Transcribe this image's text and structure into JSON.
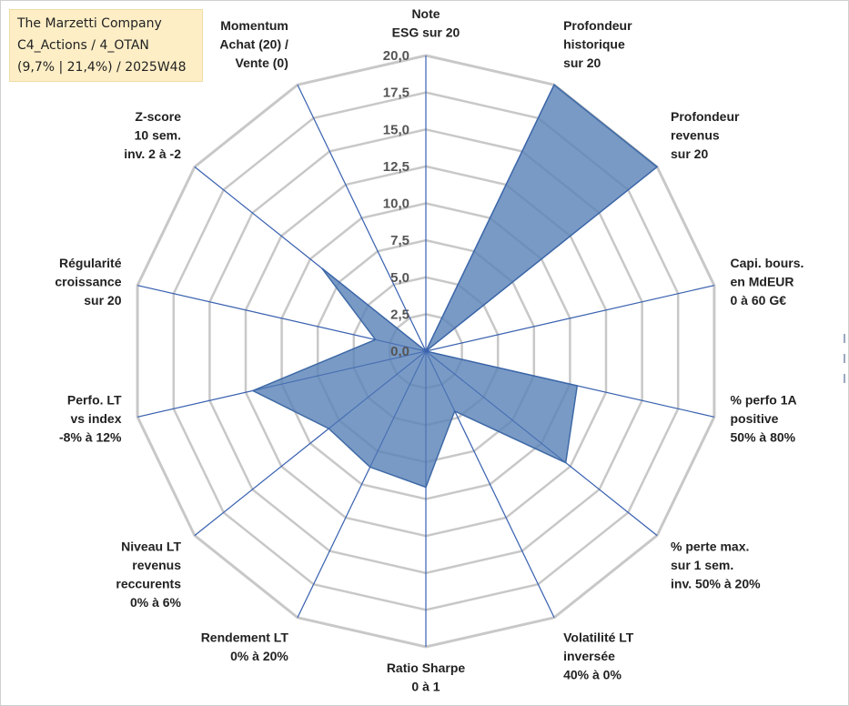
{
  "title_box": {
    "line1": "The Marzetti Company",
    "line2": "C4_Actions / 4_OTAN",
    "line3": "(9,7% | 21,4%) / 2025W48"
  },
  "chart_data": {
    "type": "radar",
    "rmax": 20,
    "ticks": [
      "0,0",
      "2,5",
      "5,0",
      "7,5",
      "10,0",
      "12,5",
      "15,0",
      "17,5",
      "20,0"
    ],
    "axes": [
      [
        "Note",
        "ESG sur 20"
      ],
      [
        "Profondeur",
        "historique",
        "sur 20"
      ],
      [
        "Profondeur",
        "revenus",
        "sur 20"
      ],
      [
        "Capi. bours.",
        "en MdEUR",
        "0 à 60 G€"
      ],
      [
        "% perfo 1A",
        "positive",
        "50% à 80%"
      ],
      [
        "% perte max.",
        "sur 1 sem.",
        "inv. 50% à 20%"
      ],
      [
        "Volatilité LT",
        "inversée",
        "40% à 0%"
      ],
      [
        "Ratio Sharpe",
        "0 à 1"
      ],
      [
        "Rendement LT",
        "0% à 20%"
      ],
      [
        "Niveau LT",
        "revenus",
        "reccurents",
        "0% à 6%"
      ],
      [
        "Perfo. LT",
        "vs index",
        "-8% à 12%"
      ],
      [
        "Régularité",
        "croissance",
        "sur 20"
      ],
      [
        "Z-score",
        "10 sem.",
        "inv. 2 à -2"
      ],
      [
        "Momentum",
        "Achat (20) /",
        "Vente (0)"
      ]
    ],
    "series": [
      {
        "values": [
          0,
          20,
          20,
          0,
          10.5,
          12.1,
          4.5,
          9.2,
          8.7,
          8.4,
          12.0,
          3.5,
          9.0,
          0
        ]
      }
    ],
    "colors": {
      "fill": "#5b84b8",
      "stroke": "#3f6aa6",
      "spoke": "#3a62b0",
      "grid": "#c8c8c8"
    }
  }
}
